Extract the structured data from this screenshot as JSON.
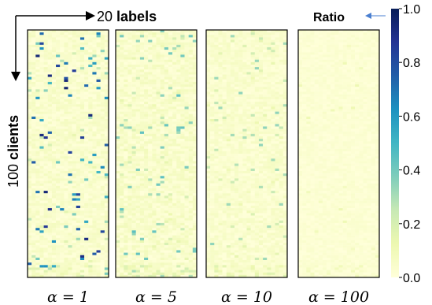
{
  "chart_data": {
    "type": "heatmap",
    "panel_count": 4,
    "rows": 100,
    "cols": 20,
    "x_annotation": {
      "number": "20",
      "word": "labels"
    },
    "y_annotation": {
      "number": "100",
      "word": "clients"
    },
    "colorbar": {
      "title": "Ratio",
      "ticks": [
        "0.0",
        "0.2",
        "0.4",
        "0.6",
        "0.8",
        "1.0"
      ],
      "range": [
        0,
        1
      ],
      "colormap": "YlGnBu",
      "stops": [
        "#ffffd9",
        "#edf8b1",
        "#c7e9b4",
        "#7fcdbb",
        "#41b6c4",
        "#1d91c0",
        "#225ea8",
        "#253494",
        "#081d58"
      ]
    },
    "panels": [
      {
        "label": "α = 1",
        "alpha": 1,
        "max_ratio": 0.95,
        "dense": 0.07,
        "noise": 0.08
      },
      {
        "label": "α = 5",
        "alpha": 5,
        "max_ratio": 0.45,
        "dense": 0.06,
        "noise": 0.09
      },
      {
        "label": "α = 10",
        "alpha": 10,
        "max_ratio": 0.35,
        "dense": 0.05,
        "noise": 0.07
      },
      {
        "label": "α = 100",
        "alpha": 100,
        "max_ratio": 0.12,
        "dense": 0.01,
        "noise": 0.04
      }
    ]
  }
}
